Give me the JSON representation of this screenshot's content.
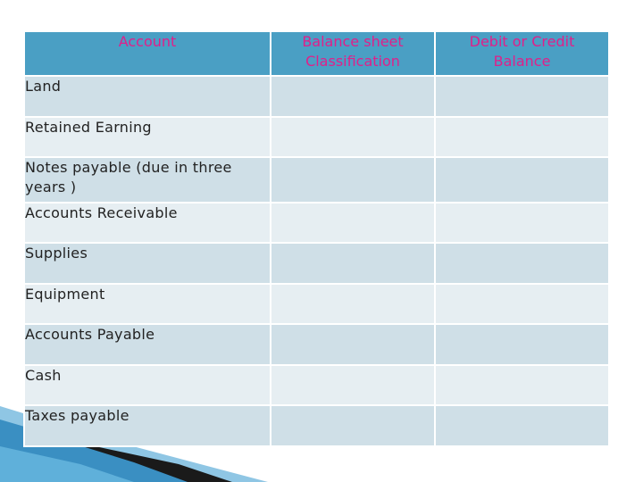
{
  "table": {
    "headers": {
      "account": "Account",
      "classification_line1": "Balance sheet",
      "classification_line2": "Classification",
      "balance_line1": "Debit or Credit",
      "balance_line2": "Balance"
    },
    "rows": [
      {
        "account": "Land"
      },
      {
        "account": "Retained Earning"
      },
      {
        "account": "Notes payable (due in three years )"
      },
      {
        "account": "Accounts Receivable"
      },
      {
        "account": "Supplies"
      },
      {
        "account": "Equipment"
      },
      {
        "account": "Accounts Payable"
      },
      {
        "account": "Cash"
      },
      {
        "account": "Taxes payable"
      }
    ]
  },
  "colors": {
    "header_bg": "#4a9fc4",
    "header_text": "#e0208a",
    "row_dark": "#cfdfe7",
    "row_light": "#e6eef2"
  }
}
